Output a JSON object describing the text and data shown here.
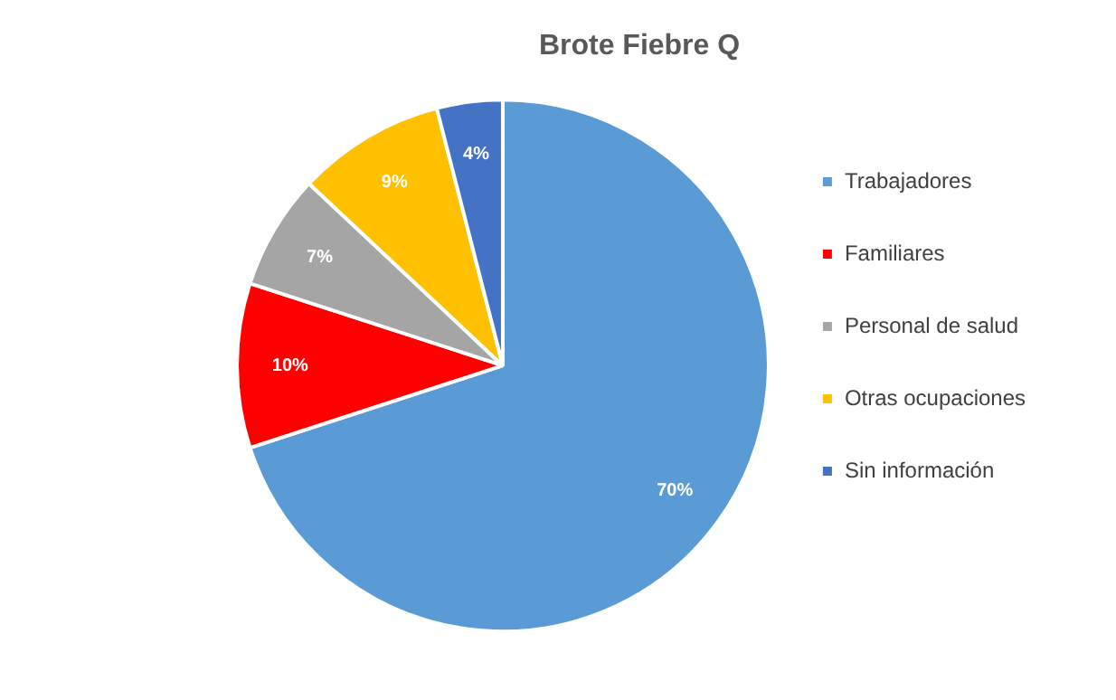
{
  "chart_data": {
    "type": "pie",
    "title": "Brote Fiebre Q",
    "categories": [
      "Trabajadores",
      "Familiares",
      "Personal de salud",
      "Otras ocupaciones",
      "Sin información"
    ],
    "values": [
      70,
      10,
      7,
      9,
      4
    ],
    "colors": [
      "#5b9bd5",
      "#ff0000",
      "#a5a5a5",
      "#ffc000",
      "#4472c4"
    ],
    "value_labels": [
      "70%",
      "10%",
      "7%",
      "9%",
      "4%"
    ],
    "legend": "right"
  }
}
